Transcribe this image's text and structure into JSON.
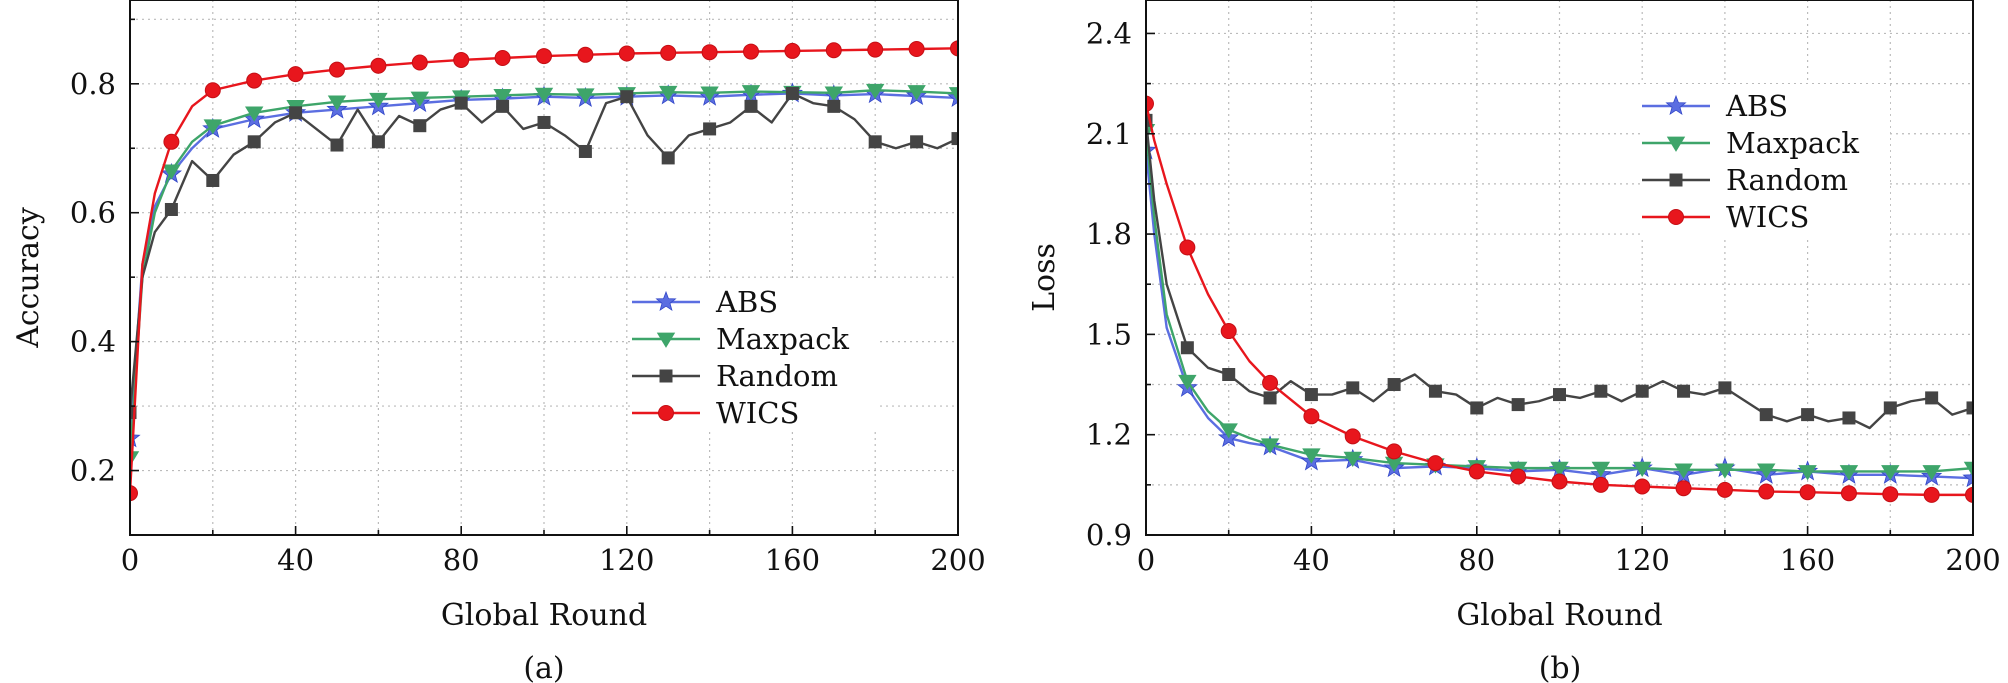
{
  "colors": {
    "ABS": "#5b6ee1",
    "Maxpack": "#3ea56a",
    "Random": "#444444",
    "WICS": "#e8161d",
    "grid": "#bbbbbb",
    "axis": "#111111"
  },
  "chart_data": [
    {
      "type": "line",
      "panel_label": "(a)",
      "xlabel": "Global Round",
      "ylabel": "Accuracy",
      "xlim": [
        0,
        200
      ],
      "ylim": [
        0.1,
        0.93
      ],
      "xticks": [
        0,
        40,
        80,
        120,
        160,
        200
      ],
      "yticks": [
        0.2,
        0.4,
        0.6,
        0.8
      ],
      "ytick_labels": [
        "0.2",
        "0.4",
        "0.6",
        "0.8"
      ],
      "grid": true,
      "legend_position": "center-right",
      "series": [
        {
          "name": "ABS",
          "marker": "star",
          "x": [
            0,
            3,
            6,
            10,
            15,
            20,
            30,
            40,
            50,
            60,
            70,
            80,
            90,
            100,
            110,
            120,
            130,
            140,
            150,
            160,
            170,
            180,
            190,
            200
          ],
          "y": [
            0.25,
            0.52,
            0.61,
            0.66,
            0.7,
            0.73,
            0.745,
            0.755,
            0.76,
            0.765,
            0.77,
            0.775,
            0.777,
            0.78,
            0.778,
            0.78,
            0.782,
            0.78,
            0.783,
            0.785,
            0.782,
            0.784,
            0.781,
            0.778
          ]
        },
        {
          "name": "Maxpack",
          "marker": "triangle-down",
          "x": [
            0,
            3,
            6,
            10,
            15,
            20,
            30,
            40,
            50,
            60,
            70,
            80,
            90,
            100,
            110,
            120,
            130,
            140,
            150,
            160,
            170,
            180,
            190,
            200
          ],
          "y": [
            0.22,
            0.5,
            0.6,
            0.665,
            0.71,
            0.735,
            0.755,
            0.765,
            0.772,
            0.776,
            0.778,
            0.78,
            0.782,
            0.784,
            0.783,
            0.785,
            0.787,
            0.786,
            0.788,
            0.787,
            0.786,
            0.79,
            0.788,
            0.785
          ]
        },
        {
          "name": "Random",
          "marker": "square",
          "x": [
            0,
            3,
            6,
            10,
            15,
            20,
            25,
            30,
            35,
            40,
            45,
            50,
            55,
            60,
            65,
            70,
            75,
            80,
            85,
            90,
            95,
            100,
            105,
            110,
            115,
            120,
            125,
            130,
            135,
            140,
            145,
            150,
            155,
            160,
            165,
            170,
            175,
            180,
            185,
            190,
            195,
            200
          ],
          "y": [
            0.29,
            0.5,
            0.57,
            0.605,
            0.68,
            0.65,
            0.69,
            0.71,
            0.74,
            0.755,
            0.73,
            0.705,
            0.76,
            0.71,
            0.75,
            0.735,
            0.76,
            0.77,
            0.74,
            0.765,
            0.73,
            0.74,
            0.72,
            0.695,
            0.77,
            0.78,
            0.72,
            0.685,
            0.72,
            0.73,
            0.74,
            0.765,
            0.74,
            0.785,
            0.77,
            0.765,
            0.745,
            0.71,
            0.7,
            0.71,
            0.7,
            0.715
          ]
        },
        {
          "name": "WICS",
          "marker": "circle",
          "x": [
            0,
            3,
            6,
            10,
            15,
            20,
            30,
            40,
            50,
            60,
            70,
            80,
            90,
            100,
            110,
            120,
            130,
            140,
            150,
            160,
            170,
            180,
            190,
            200
          ],
          "y": [
            0.165,
            0.52,
            0.63,
            0.71,
            0.765,
            0.79,
            0.805,
            0.815,
            0.822,
            0.828,
            0.833,
            0.837,
            0.84,
            0.843,
            0.845,
            0.847,
            0.848,
            0.849,
            0.85,
            0.851,
            0.852,
            0.853,
            0.854,
            0.855
          ]
        }
      ]
    },
    {
      "type": "line",
      "panel_label": "(b)",
      "xlabel": "Global Round",
      "ylabel": "Loss",
      "xlim": [
        0,
        200
      ],
      "ylim": [
        0.9,
        2.5
      ],
      "xticks": [
        0,
        40,
        80,
        120,
        160,
        200
      ],
      "yticks": [
        0.9,
        1.2,
        1.5,
        1.8,
        2.1,
        2.4
      ],
      "ytick_labels": [
        "0.9",
        "1.2",
        "1.5",
        "1.8",
        "2.1",
        "2.4"
      ],
      "grid": true,
      "legend_position": "top-right",
      "series": [
        {
          "name": "ABS",
          "marker": "star",
          "x": [
            0,
            2,
            5,
            10,
            15,
            20,
            25,
            30,
            40,
            50,
            60,
            70,
            80,
            90,
            100,
            110,
            120,
            130,
            140,
            150,
            160,
            170,
            180,
            190,
            200
          ],
          "y": [
            2.05,
            1.8,
            1.52,
            1.34,
            1.25,
            1.19,
            1.175,
            1.165,
            1.12,
            1.125,
            1.1,
            1.105,
            1.1,
            1.09,
            1.095,
            1.08,
            1.1,
            1.08,
            1.1,
            1.08,
            1.09,
            1.08,
            1.08,
            1.075,
            1.07
          ]
        },
        {
          "name": "Maxpack",
          "marker": "triangle-down",
          "x": [
            0,
            2,
            5,
            10,
            15,
            20,
            25,
            30,
            40,
            50,
            60,
            70,
            80,
            90,
            100,
            110,
            120,
            130,
            140,
            150,
            160,
            170,
            180,
            190,
            200
          ],
          "y": [
            2.11,
            1.85,
            1.56,
            1.36,
            1.27,
            1.215,
            1.19,
            1.17,
            1.14,
            1.13,
            1.115,
            1.11,
            1.105,
            1.1,
            1.1,
            1.1,
            1.1,
            1.095,
            1.095,
            1.095,
            1.09,
            1.09,
            1.09,
            1.09,
            1.1
          ]
        },
        {
          "name": "Random",
          "marker": "square",
          "x": [
            0,
            2,
            5,
            10,
            15,
            20,
            25,
            30,
            35,
            40,
            45,
            50,
            55,
            60,
            65,
            70,
            75,
            80,
            85,
            90,
            95,
            100,
            105,
            110,
            115,
            120,
            125,
            130,
            135,
            140,
            145,
            150,
            155,
            160,
            165,
            170,
            175,
            180,
            185,
            190,
            195,
            200
          ],
          "y": [
            2.14,
            1.9,
            1.65,
            1.46,
            1.4,
            1.38,
            1.33,
            1.31,
            1.36,
            1.32,
            1.32,
            1.34,
            1.3,
            1.35,
            1.38,
            1.33,
            1.32,
            1.28,
            1.31,
            1.29,
            1.3,
            1.32,
            1.31,
            1.33,
            1.3,
            1.33,
            1.36,
            1.33,
            1.32,
            1.34,
            1.3,
            1.26,
            1.24,
            1.26,
            1.24,
            1.25,
            1.22,
            1.28,
            1.3,
            1.31,
            1.26,
            1.28
          ]
        },
        {
          "name": "WICS",
          "marker": "circle",
          "x": [
            0,
            2,
            5,
            10,
            15,
            20,
            25,
            30,
            40,
            50,
            60,
            70,
            80,
            90,
            100,
            110,
            120,
            130,
            140,
            150,
            160,
            170,
            180,
            190,
            200
          ],
          "y": [
            2.19,
            2.08,
            1.95,
            1.76,
            1.62,
            1.51,
            1.42,
            1.355,
            1.255,
            1.195,
            1.15,
            1.115,
            1.09,
            1.075,
            1.06,
            1.05,
            1.045,
            1.04,
            1.035,
            1.03,
            1.028,
            1.025,
            1.022,
            1.02,
            1.02
          ]
        }
      ]
    }
  ]
}
